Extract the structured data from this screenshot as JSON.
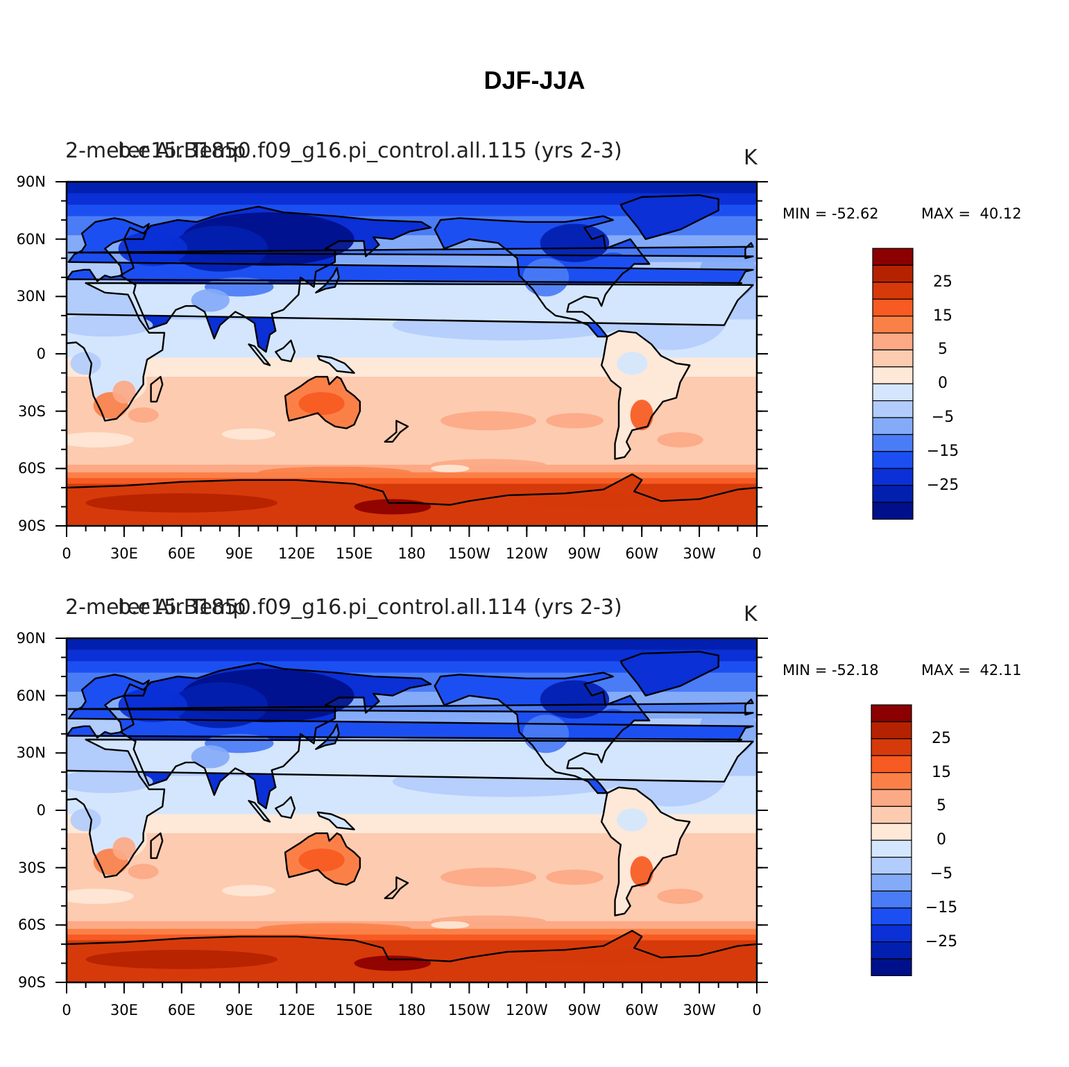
{
  "title": "DJF-JJA",
  "panels": [
    {
      "left_string": "2-meter Air Temp",
      "center_string": "b.e15.B1850.f09_g16.pi_control.all.115 (yrs 2-3)",
      "units": "K",
      "min_label": "MIN = -52.62",
      "max_label": "MAX =  40.12"
    },
    {
      "left_string": "2-meter Air Temp",
      "center_string": "b.e15.B1850.f09_g16.pi_control.all.114 (yrs 2-3)",
      "units": "K",
      "min_label": "MIN = -52.18",
      "max_label": "MAX =  42.11"
    }
  ],
  "lat_ticks": [
    "90N",
    "60N",
    "30N",
    "0",
    "30S",
    "60S",
    "90S"
  ],
  "lon_ticks": [
    "0",
    "30E",
    "60E",
    "90E",
    "120E",
    "150E",
    "180",
    "150W",
    "120W",
    "90W",
    "60W",
    "30W",
    "0"
  ],
  "colorbar": {
    "labels": [
      "25",
      "15",
      "5",
      "0",
      "−5",
      "−15",
      "−25"
    ],
    "colors": [
      "#8b0000",
      "#b52200",
      "#d63a0a",
      "#f75a22",
      "#fb8048",
      "#fca985",
      "#fdcbb0",
      "#fee8d8",
      "#d4e6fd",
      "#b2ccfc",
      "#84abf8",
      "#4a7cf6",
      "#1c4ff2",
      "#0a30d6",
      "#0220b0",
      "#00108a"
    ]
  },
  "icons": {
    "coastlines": "world-coastline-outline"
  }
}
